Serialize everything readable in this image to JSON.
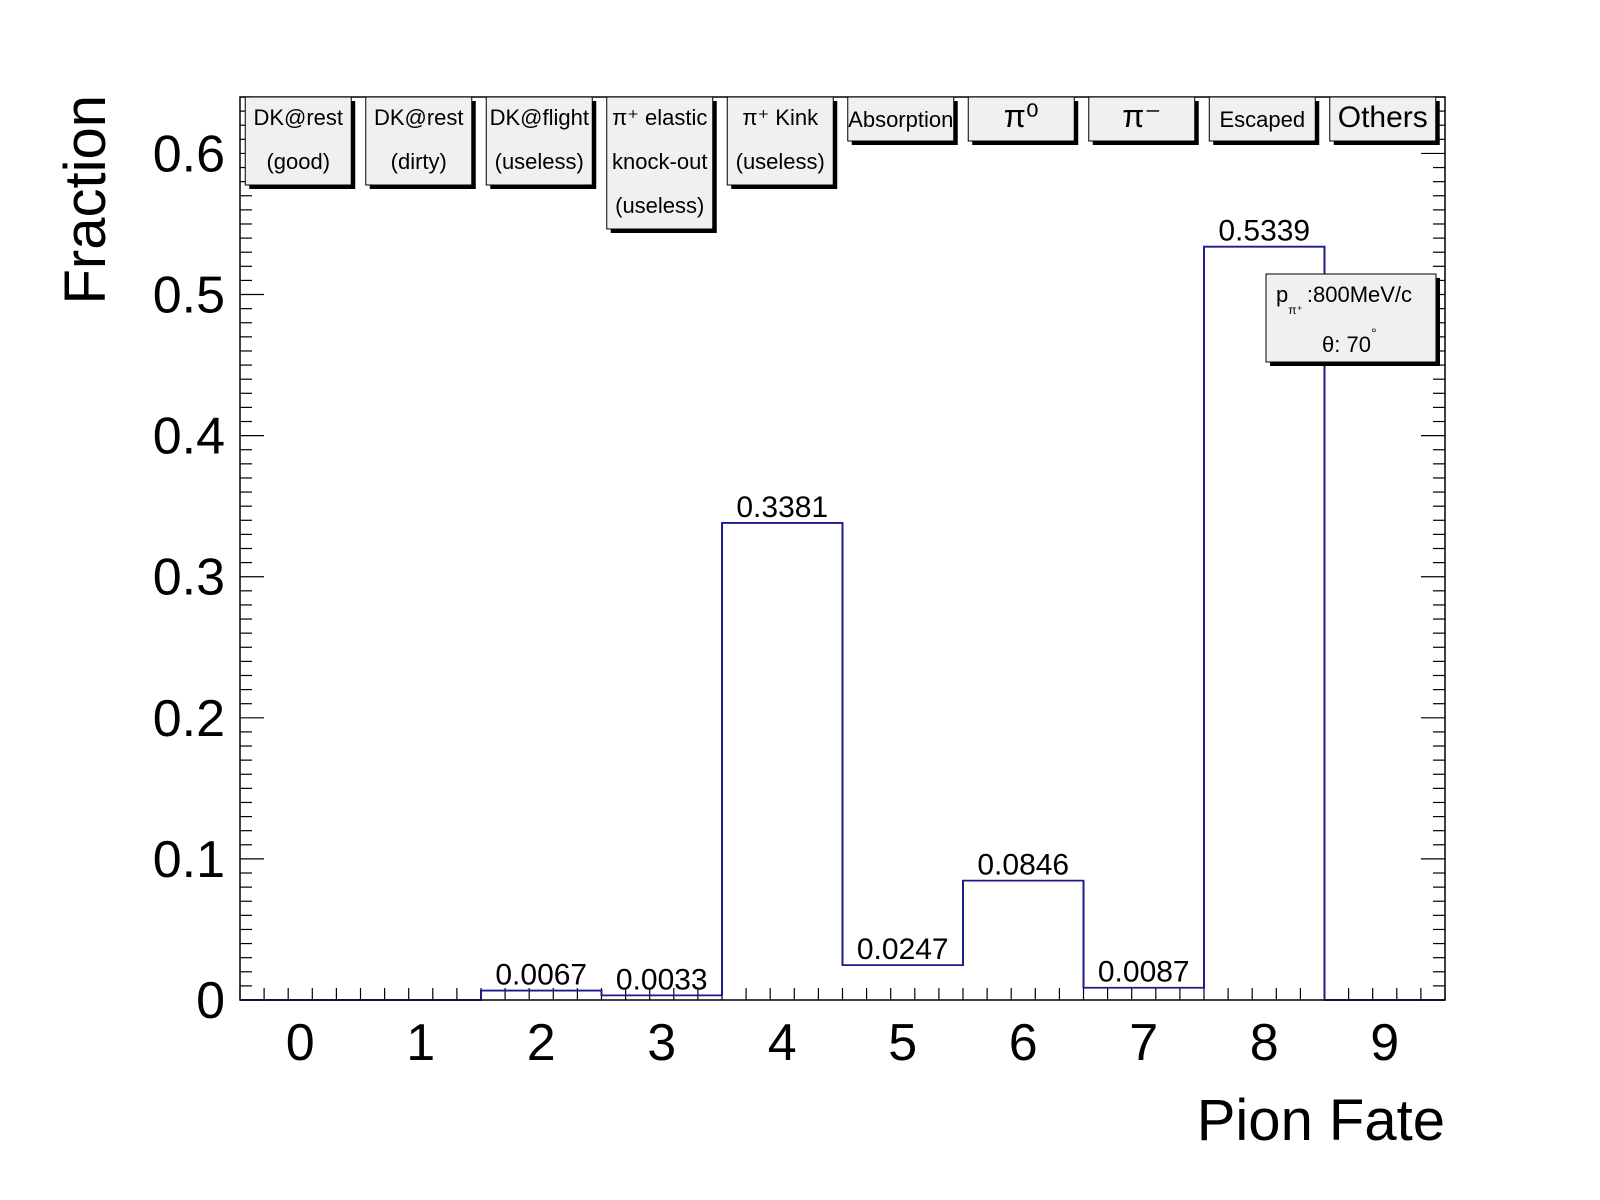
{
  "chart_data": {
    "type": "bar",
    "xlabel": "Pion Fate",
    "ylabel": "Fraction",
    "ylim": [
      0,
      0.64
    ],
    "xlim": [
      -0.5,
      9.5
    ],
    "y_ticks": [
      "0",
      "0.1",
      "0.2",
      "0.3",
      "0.4",
      "0.5",
      "0.6"
    ],
    "categories": [
      "0",
      "1",
      "2",
      "3",
      "4",
      "5",
      "6",
      "7",
      "8",
      "9"
    ],
    "values": [
      0,
      0,
      0.0067,
      0.0033,
      0.3381,
      0.0247,
      0.0846,
      0.0087,
      0.5339,
      0
    ],
    "value_labels": [
      "",
      "",
      "0.0067",
      "0.0033",
      "0.3381",
      "0.0247",
      "0.0846",
      "0.0087",
      "0.5339",
      ""
    ],
    "line_color": "#1a1a8c",
    "category_boxes": [
      {
        "lines": [
          "DK@rest",
          "(good)"
        ]
      },
      {
        "lines": [
          "DK@rest",
          "(dirty)"
        ]
      },
      {
        "lines": [
          "DK@flight",
          "(useless)"
        ]
      },
      {
        "lines": [
          "π⁺ elastic",
          "knock-out",
          "(useless)"
        ]
      },
      {
        "lines": [
          "π⁺ Kink",
          "(useless)"
        ]
      },
      {
        "lines": [
          "Absorption"
        ]
      },
      {
        "lines": [
          "π⁰"
        ]
      },
      {
        "lines": [
          "π⁻"
        ]
      },
      {
        "lines": [
          "Escaped"
        ]
      },
      {
        "lines": [
          "Others"
        ]
      }
    ],
    "annotation": {
      "momentum_symbol": "p",
      "momentum_subscript": "π⁺",
      "momentum_value": ":800MeV/c",
      "angle_label": "θ: 70",
      "angle_unit": "°"
    }
  }
}
